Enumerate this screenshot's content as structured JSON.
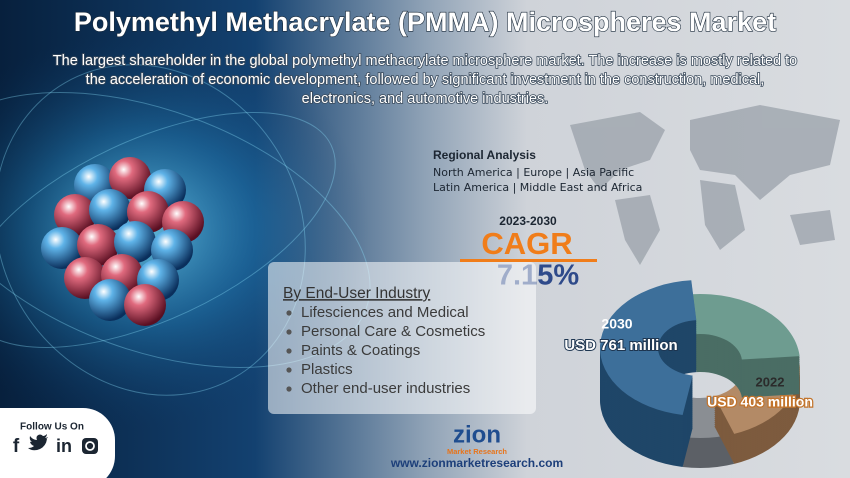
{
  "header": {
    "title": "Polymethyl Methacrylate (PMMA) Microspheres Market",
    "subtitle_lines": [
      "The largest shareholder in the global polymethyl methacrylate microsphere market. The increase is mostly related to",
      "the acceleration of economic development, followed by significant investment in the construction, medical,",
      "electronics, and automotive industries."
    ]
  },
  "regional": {
    "title": "Regional Analysis",
    "lines": [
      "North America | Europe | Asia Pacific",
      "Latin America | Middle East and Africa"
    ]
  },
  "cagr": {
    "period": "2023-2030",
    "label": "CAGR",
    "value": "7.15%"
  },
  "segments": {
    "title": "By End-User Industry",
    "items": [
      "Lifesciences and Medical",
      "Personal Care & Cosmetics",
      "Paints & Coatings",
      "Plastics",
      "Other end-user industries"
    ]
  },
  "market": {
    "year_end": "2030",
    "value_end": "USD 761 million",
    "year_start": "2022",
    "value_start": "USD 403 million"
  },
  "follow": {
    "title": "Follow Us On",
    "icons": [
      "f",
      "in"
    ]
  },
  "logo": {
    "name": "zion",
    "tagline": "Market Research"
  },
  "url": "www.zionmarketresearch.com"
}
